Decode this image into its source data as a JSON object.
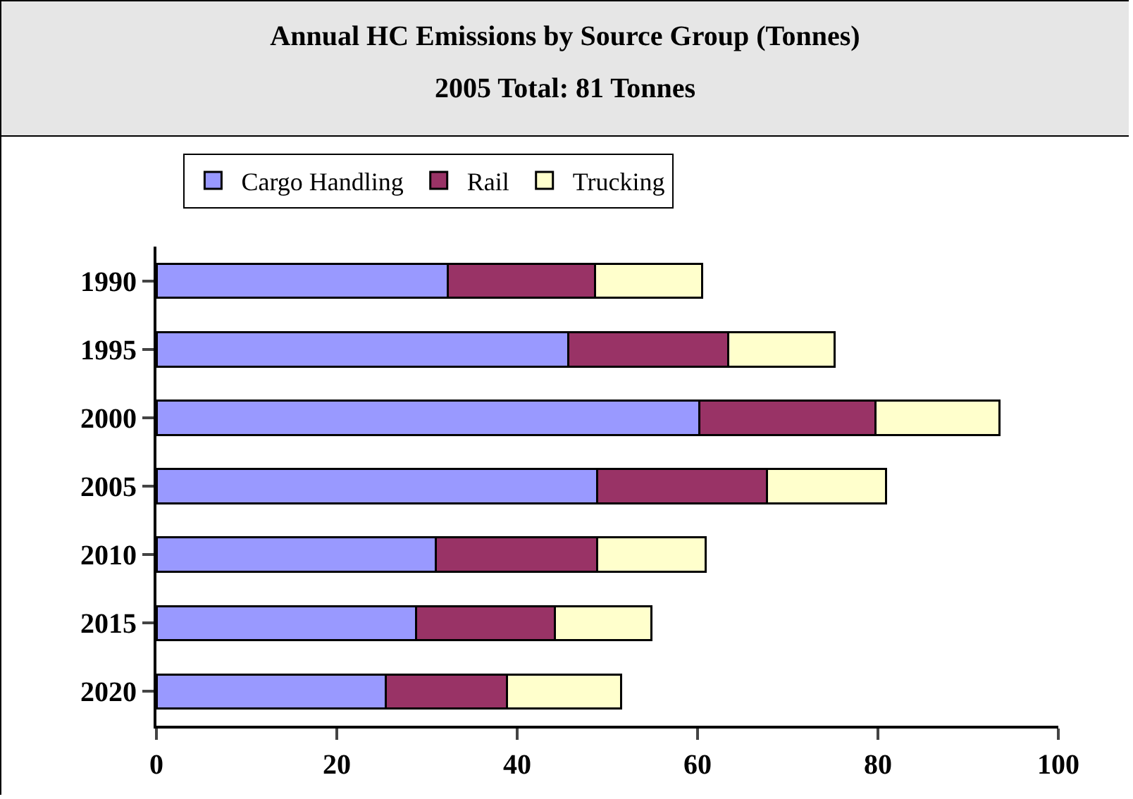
{
  "chart_data": {
    "type": "bar",
    "orientation": "horizontal",
    "stacked": true,
    "title": "Annual HC Emissions by Source Group (Tonnes)",
    "subtitle": "2005 Total: 81 Tonnes",
    "categories": [
      "1990",
      "1995",
      "2000",
      "2005",
      "2010",
      "2015",
      "2020"
    ],
    "series": [
      {
        "name": "Cargo Handling",
        "color": "#9999ff",
        "values": [
          32.3,
          45.7,
          60.2,
          48.9,
          31.0,
          28.8,
          25.4
        ]
      },
      {
        "name": "Rail",
        "color": "#993366",
        "values": [
          16.3,
          17.7,
          19.5,
          18.8,
          17.9,
          15.4,
          13.5
        ]
      },
      {
        "name": "Trucking",
        "color": "#ffffcc",
        "values": [
          11.9,
          11.8,
          13.8,
          13.2,
          12.0,
          10.7,
          12.6
        ]
      }
    ],
    "xlim": [
      0,
      100
    ],
    "xticks": [
      0,
      20,
      40,
      60,
      80,
      100
    ],
    "grid": false,
    "legend": "top left"
  }
}
